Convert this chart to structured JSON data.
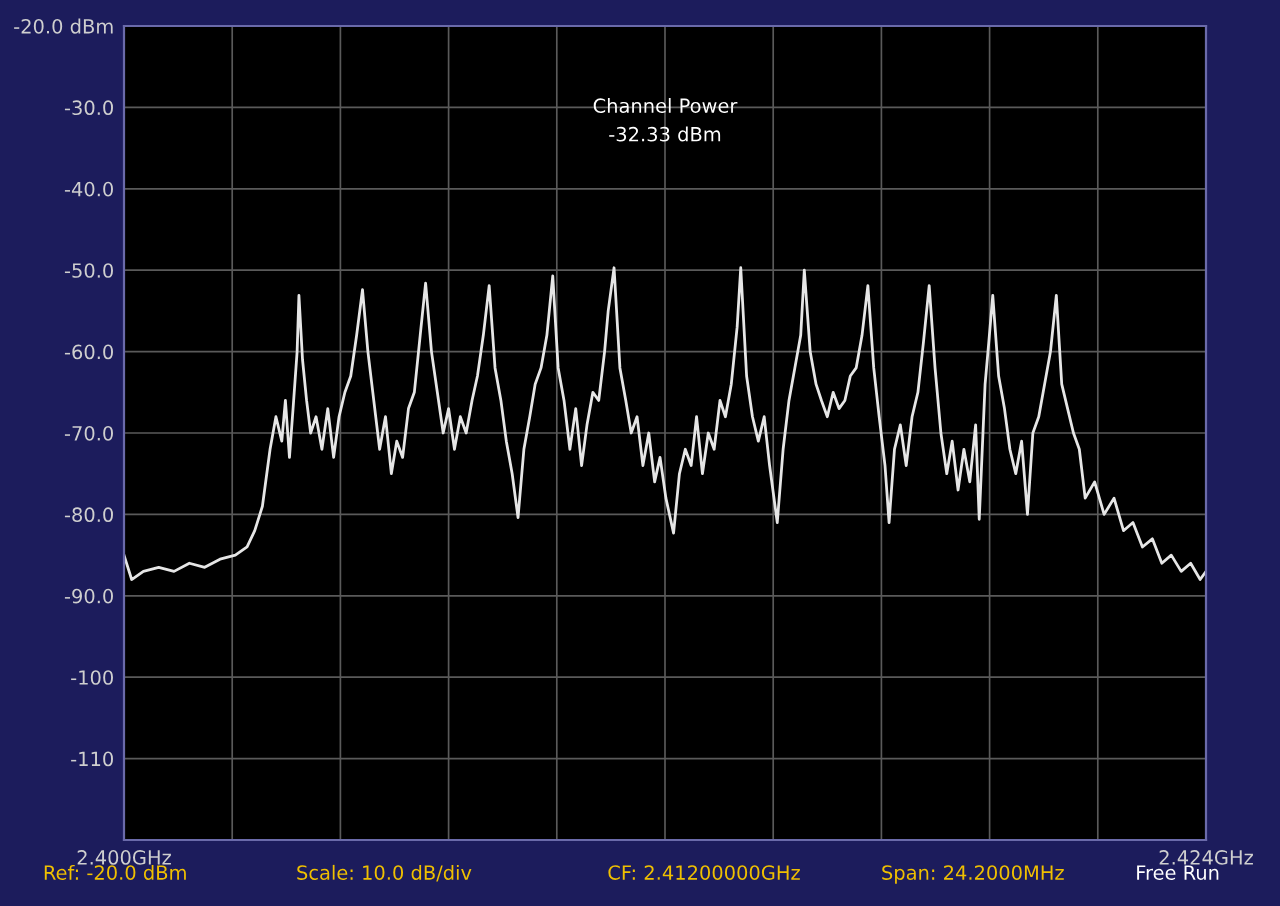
{
  "chart_data": {
    "type": "line",
    "x": [
      2.4,
      2.40017,
      2.40043,
      2.40077,
      2.40111,
      2.40145,
      2.40179,
      2.40213,
      2.40247,
      2.40273,
      2.4029,
      2.40307,
      2.40324,
      2.40337,
      2.4035,
      2.40358,
      2.40367,
      2.40375,
      2.40384,
      2.40388,
      2.40396,
      2.40405,
      2.40414,
      2.40426,
      2.40439,
      2.40452,
      2.40465,
      2.40477,
      2.4049,
      2.40503,
      2.40516,
      2.40529,
      2.40541,
      2.40554,
      2.40567,
      2.4058,
      2.40593,
      2.40605,
      2.40618,
      2.40631,
      2.40644,
      2.40657,
      2.40669,
      2.40682,
      2.40695,
      2.40708,
      2.4072,
      2.40733,
      2.40746,
      2.40759,
      2.40772,
      2.40784,
      2.40797,
      2.4081,
      2.40823,
      2.40836,
      2.40848,
      2.40861,
      2.40874,
      2.40887,
      2.409,
      2.40912,
      2.40925,
      2.40938,
      2.40951,
      2.40963,
      2.40976,
      2.40989,
      2.41002,
      2.41015,
      2.41027,
      2.4104,
      2.41053,
      2.41066,
      2.41074,
      2.41087,
      2.411,
      2.41113,
      2.41125,
      2.41138,
      2.41151,
      2.41164,
      2.41177,
      2.41189,
      2.41202,
      2.41219,
      2.41232,
      2.41245,
      2.41258,
      2.4127,
      2.41283,
      2.41296,
      2.41309,
      2.41322,
      2.41334,
      2.41347,
      2.4136,
      2.41368,
      2.41381,
      2.41394,
      2.41407,
      2.4142,
      2.41432,
      2.41449,
      2.41462,
      2.41475,
      2.41488,
      2.41501,
      2.41509,
      2.41522,
      2.41535,
      2.41547,
      2.4156,
      2.41573,
      2.41586,
      2.41599,
      2.41611,
      2.41624,
      2.41637,
      2.4165,
      2.41663,
      2.41675,
      2.41688,
      2.41697,
      2.41709,
      2.41722,
      2.41735,
      2.41748,
      2.41761,
      2.41773,
      2.41786,
      2.41799,
      2.41812,
      2.41825,
      2.41837,
      2.4185,
      2.41863,
      2.41876,
      2.41889,
      2.41897,
      2.4191,
      2.41918,
      2.41927,
      2.4194,
      2.41953,
      2.41965,
      2.41978,
      2.41991,
      2.42004,
      2.42016,
      2.42029,
      2.42042,
      2.42055,
      2.42068,
      2.4208,
      2.42093,
      2.42106,
      2.42119,
      2.42132,
      2.42153,
      2.42174,
      2.42196,
      2.42217,
      2.42238,
      2.42259,
      2.42281,
      2.42302,
      2.42323,
      2.42345,
      2.42366,
      2.42387,
      2.424
    ],
    "series": [
      {
        "color": "#e6e6e6",
        "values": [
          -85,
          -88,
          -87,
          -86.5,
          -87,
          -86,
          -86.5,
          -85.5,
          -85,
          -84,
          -82,
          -79,
          -72,
          -68,
          -71,
          -66,
          -73,
          -67,
          -60,
          -53.1,
          -61,
          -66,
          -70,
          -68,
          -72,
          -67,
          -73,
          -68,
          -65,
          -63,
          -58,
          -52.4,
          -60,
          -66,
          -72,
          -68,
          -75,
          -71,
          -73,
          -67,
          -65,
          -58,
          -51.6,
          -60,
          -65,
          -70,
          -67,
          -72,
          -68,
          -70,
          -66,
          -63,
          -58,
          -51.9,
          -62,
          -66,
          -71,
          -75,
          -80.4,
          -72,
          -68,
          -64,
          -62,
          -58,
          -50.7,
          -62,
          -66,
          -72,
          -67,
          -74,
          -69,
          -65,
          -66,
          -60,
          -55,
          -49.7,
          -62,
          -66,
          -70,
          -68,
          -74,
          -70,
          -76,
          -73,
          -78,
          -82.3,
          -75,
          -72,
          -74,
          -68,
          -75,
          -70,
          -72,
          -66,
          -68,
          -64,
          -57,
          -49.7,
          -63,
          -68,
          -71,
          -68,
          -74,
          -81,
          -72,
          -66,
          -62,
          -58,
          -50,
          -60,
          -64,
          -66,
          -68,
          -65,
          -67,
          -66,
          -63,
          -62,
          -58,
          -51.9,
          -62,
          -68,
          -74,
          -81,
          -72,
          -69,
          -74,
          -68,
          -65,
          -59,
          -51.9,
          -62,
          -70,
          -75,
          -71,
          -77,
          -72,
          -76,
          -69,
          -80.6,
          -64,
          -59,
          -53.1,
          -63,
          -67,
          -72,
          -75,
          -71,
          -80,
          -70,
          -68,
          -64,
          -60,
          -53.1,
          -64,
          -67,
          -70,
          -72,
          -78,
          -76,
          -80,
          -78,
          -82,
          -81,
          -84,
          -83,
          -86,
          -85,
          -87,
          -86,
          -88,
          -87
        ]
      }
    ],
    "xlim": [
      2.4,
      2.424
    ],
    "xticks": [
      {
        "value": 2.4,
        "label": "2.400GHz"
      },
      {
        "value": 2.4024,
        "label": null
      },
      {
        "value": 2.4048,
        "label": null
      },
      {
        "value": 2.4072,
        "label": null
      },
      {
        "value": 2.4096,
        "label": null
      },
      {
        "value": 2.412,
        "label": null
      },
      {
        "value": 2.4144,
        "label": null
      },
      {
        "value": 2.4168,
        "label": null
      },
      {
        "value": 2.4192,
        "label": null
      },
      {
        "value": 2.4216,
        "label": null
      },
      {
        "value": 2.424,
        "label": "2.424GHz"
      }
    ],
    "ylim": [
      -120,
      -20
    ],
    "yticks": [
      {
        "value": -120,
        "label": null
      },
      {
        "value": -110,
        "label": "-110"
      },
      {
        "value": -100,
        "label": "-100"
      },
      {
        "value": -90,
        "label": "-90.0"
      },
      {
        "value": -80,
        "label": "-80.0"
      },
      {
        "value": -70,
        "label": "-70.0"
      },
      {
        "value": -60,
        "label": "-60.0"
      },
      {
        "value": -50,
        "label": "-50.0"
      },
      {
        "value": -40,
        "label": "-40.0"
      },
      {
        "value": -30,
        "label": "-30.0"
      },
      {
        "value": -20,
        "label": "-20.0 dBm"
      }
    ],
    "grid": true,
    "annotations": [
      "Channel Power",
      "-32.33 dBm",
      "Ref: -20.0 dBm",
      "Scale: 10.0 dB/div",
      "CF: 2.41200000GHz",
      "Span: 24.2000MHz",
      "Free Run"
    ]
  }
}
